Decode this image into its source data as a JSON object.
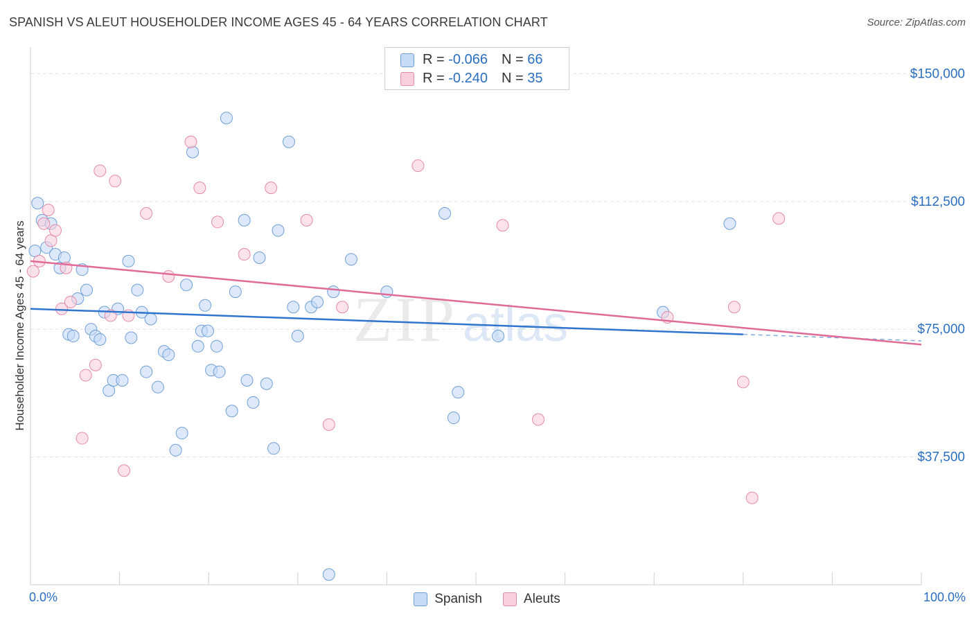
{
  "title": "SPANISH VS ALEUT HOUSEHOLDER INCOME AGES 45 - 64 YEARS CORRELATION CHART",
  "source": "Source: ZipAtlas.com",
  "watermark": {
    "zip": "ZIP",
    "atlas": "atlas"
  },
  "legend": {
    "rows": [
      {
        "r_label": "R = ",
        "r_value": "-0.066",
        "n_label": "N = ",
        "n_value": "66"
      },
      {
        "r_label": "R = ",
        "r_value": "-0.240",
        "n_label": "N = ",
        "n_value": "35"
      }
    ]
  },
  "bottom_legend": {
    "spanish": "Spanish",
    "aleuts": "Aleuts"
  },
  "colors": {
    "spanish_fill": "#c6dbf6",
    "spanish_stroke": "#6f9fd8",
    "spanish_line": "#2f74cf",
    "aleut_fill": "#f9cfdd",
    "aleut_stroke": "#e58aa8",
    "aleut_line": "#e06b96",
    "axis_label": "#2a6ec2",
    "grid": "#e4e4e4"
  },
  "chart_data": {
    "type": "scatter",
    "title": "SPANISH VS ALEUT HOUSEHOLDER INCOME AGES 45 - 64 YEARS CORRELATION CHART",
    "ylabel": "Householder Income Ages 45 - 64 years",
    "xlabel": "",
    "xlim": [
      0,
      100
    ],
    "ylim": [
      0,
      155000
    ],
    "x_tick_labels": [
      "0.0%",
      "100.0%"
    ],
    "y_ticks": [
      37500,
      75000,
      112500,
      150000
    ],
    "y_tick_labels": [
      "$37,500",
      "$75,000",
      "$112,500",
      "$150,000"
    ],
    "grid": true,
    "legend_position": "top-center",
    "series": [
      {
        "name": "Spanish",
        "r": -0.066,
        "n": 66,
        "trend": {
          "x": [
            0,
            80
          ],
          "y": [
            81000,
            73500
          ],
          "dashed_to": [
            100,
            71600
          ]
        },
        "points": [
          [
            0.5,
            98000
          ],
          [
            0.8,
            112000
          ],
          [
            1.3,
            107000
          ],
          [
            1.8,
            99000
          ],
          [
            2.3,
            106000
          ],
          [
            2.8,
            97000
          ],
          [
            3.3,
            93000
          ],
          [
            3.8,
            96000
          ],
          [
            4.3,
            73500
          ],
          [
            4.8,
            73000
          ],
          [
            5.3,
            84000
          ],
          [
            5.8,
            92500
          ],
          [
            6.3,
            86500
          ],
          [
            6.8,
            75000
          ],
          [
            7.3,
            73000
          ],
          [
            7.8,
            72000
          ],
          [
            8.3,
            80000
          ],
          [
            8.8,
            57000
          ],
          [
            9.3,
            60000
          ],
          [
            9.8,
            81000
          ],
          [
            10.3,
            60000
          ],
          [
            11,
            95000
          ],
          [
            11.3,
            72500
          ],
          [
            12,
            86500
          ],
          [
            12.5,
            80000
          ],
          [
            13,
            62500
          ],
          [
            13.5,
            78000
          ],
          [
            14.3,
            58000
          ],
          [
            15,
            68500
          ],
          [
            15.5,
            67500
          ],
          [
            16.3,
            39500
          ],
          [
            17,
            44500
          ],
          [
            17.5,
            88000
          ],
          [
            18.2,
            127000
          ],
          [
            18.8,
            70000
          ],
          [
            19.2,
            74500
          ],
          [
            19.6,
            82000
          ],
          [
            19.9,
            74500
          ],
          [
            20.3,
            63000
          ],
          [
            20.9,
            70000
          ],
          [
            21.2,
            62500
          ],
          [
            22,
            137000
          ],
          [
            22.6,
            51000
          ],
          [
            23,
            86000
          ],
          [
            24,
            107000
          ],
          [
            24.3,
            60000
          ],
          [
            25,
            53500
          ],
          [
            25.7,
            96000
          ],
          [
            26.5,
            59000
          ],
          [
            27.3,
            40000
          ],
          [
            27.8,
            104000
          ],
          [
            29,
            130000
          ],
          [
            29.5,
            81500
          ],
          [
            30,
            73000
          ],
          [
            31.5,
            81500
          ],
          [
            32.2,
            83000
          ],
          [
            33.5,
            3000
          ],
          [
            34,
            86000
          ],
          [
            36,
            95500
          ],
          [
            40,
            86000
          ],
          [
            46.5,
            109000
          ],
          [
            47.5,
            49000
          ],
          [
            48,
            56500
          ],
          [
            52.5,
            73000
          ],
          [
            71,
            80000
          ],
          [
            78.5,
            106000
          ]
        ]
      },
      {
        "name": "Aleuts",
        "r": -0.24,
        "n": 35,
        "trend": {
          "x": [
            0,
            100
          ],
          "y": [
            95000,
            70500
          ]
        },
        "points": [
          [
            0.3,
            92000
          ],
          [
            1,
            95000
          ],
          [
            1.5,
            106000
          ],
          [
            2,
            110000
          ],
          [
            2.3,
            101000
          ],
          [
            2.8,
            104000
          ],
          [
            3.5,
            81000
          ],
          [
            4,
            93000
          ],
          [
            4.5,
            83000
          ],
          [
            5.8,
            43000
          ],
          [
            6.2,
            61500
          ],
          [
            7.3,
            64500
          ],
          [
            7.8,
            121500
          ],
          [
            9,
            79000
          ],
          [
            9.5,
            118500
          ],
          [
            10.5,
            33500
          ],
          [
            11,
            79000
          ],
          [
            13,
            109000
          ],
          [
            15.5,
            90500
          ],
          [
            18,
            130000
          ],
          [
            19,
            116500
          ],
          [
            21,
            106500
          ],
          [
            24,
            97000
          ],
          [
            27,
            116500
          ],
          [
            31,
            107000
          ],
          [
            33.5,
            47000
          ],
          [
            35,
            81500
          ],
          [
            43.5,
            123000
          ],
          [
            53,
            105500
          ],
          [
            57,
            48500
          ],
          [
            71.5,
            78500
          ],
          [
            79,
            81500
          ],
          [
            80,
            59500
          ],
          [
            81,
            25500
          ],
          [
            84,
            107500
          ]
        ]
      }
    ]
  }
}
